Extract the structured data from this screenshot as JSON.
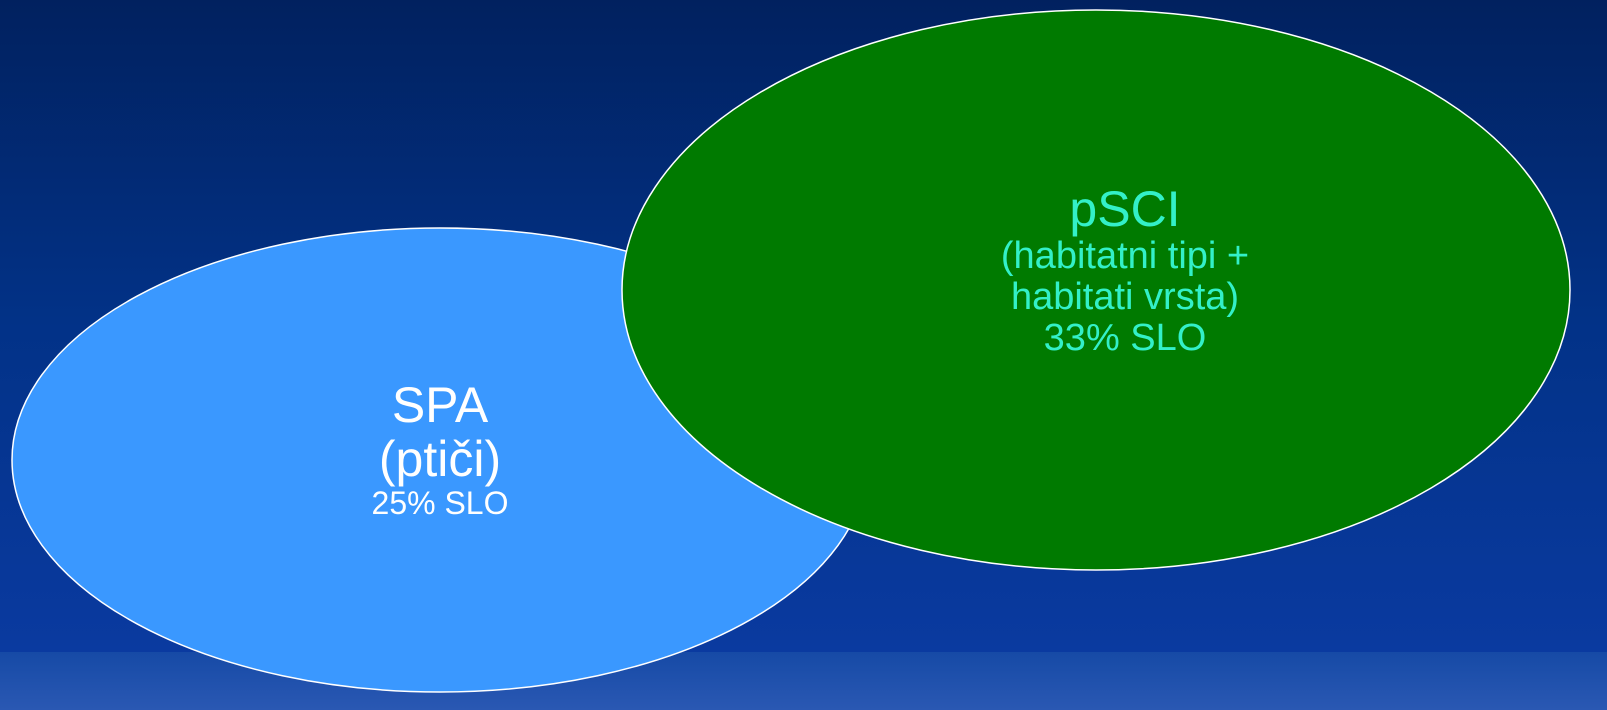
{
  "colors": {
    "background": "#02287a",
    "spa_fill": "#3a98ff",
    "psci_fill": "#007a00",
    "outline": "#ffffff",
    "spa_text": "#ffffff",
    "psci_text": "#33f0c8"
  },
  "diagram": {
    "type": "venn",
    "sets": [
      {
        "id": "spa",
        "title": "SPA",
        "subtitle": "(ptiči)",
        "share": "25% SLO"
      },
      {
        "id": "psci",
        "title": "pSCI",
        "subtitle_line1": "(habitatni tipi +",
        "subtitle_line2": "habitati vrsta)",
        "share": "33% SLO"
      }
    ]
  }
}
